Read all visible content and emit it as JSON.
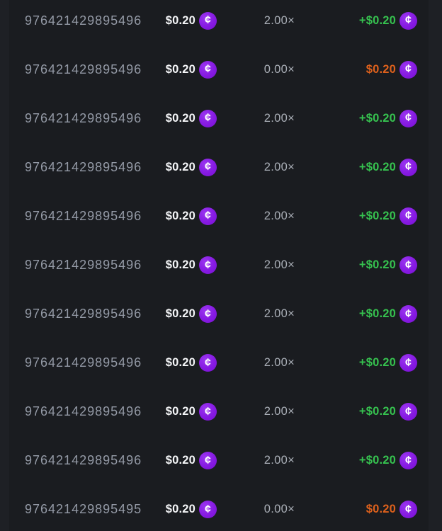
{
  "coin": {
    "symbol": "¢",
    "name": "cents-coin-icon"
  },
  "colors": {
    "page_background": "#1e2025",
    "card_background": "#1a1c20",
    "coin_purple": "#861ae2",
    "positive_payout": "#36c24f",
    "negative_payout": "#de611c",
    "id_text": "#949aa6",
    "multiplier_text": "#a9aeb6",
    "bet_text": "#f5f6f8"
  },
  "rows": [
    {
      "id": "976421429895496",
      "bet": "$0.20",
      "multiplier": "2.00×",
      "payout": "+$0.20",
      "result": "win"
    },
    {
      "id": "976421429895496",
      "bet": "$0.20",
      "multiplier": "0.00×",
      "payout": "$0.20",
      "result": "loss"
    },
    {
      "id": "976421429895496",
      "bet": "$0.20",
      "multiplier": "2.00×",
      "payout": "+$0.20",
      "result": "win"
    },
    {
      "id": "976421429895496",
      "bet": "$0.20",
      "multiplier": "2.00×",
      "payout": "+$0.20",
      "result": "win"
    },
    {
      "id": "976421429895496",
      "bet": "$0.20",
      "multiplier": "2.00×",
      "payout": "+$0.20",
      "result": "win"
    },
    {
      "id": "976421429895496",
      "bet": "$0.20",
      "multiplier": "2.00×",
      "payout": "+$0.20",
      "result": "win"
    },
    {
      "id": "976421429895496",
      "bet": "$0.20",
      "multiplier": "2.00×",
      "payout": "+$0.20",
      "result": "win"
    },
    {
      "id": "976421429895496",
      "bet": "$0.20",
      "multiplier": "2.00×",
      "payout": "+$0.20",
      "result": "win"
    },
    {
      "id": "976421429895496",
      "bet": "$0.20",
      "multiplier": "2.00×",
      "payout": "+$0.20",
      "result": "win"
    },
    {
      "id": "976421429895496",
      "bet": "$0.20",
      "multiplier": "2.00×",
      "payout": "+$0.20",
      "result": "win"
    },
    {
      "id": "976421429895495",
      "bet": "$0.20",
      "multiplier": "0.00×",
      "payout": "$0.20",
      "result": "loss"
    }
  ]
}
